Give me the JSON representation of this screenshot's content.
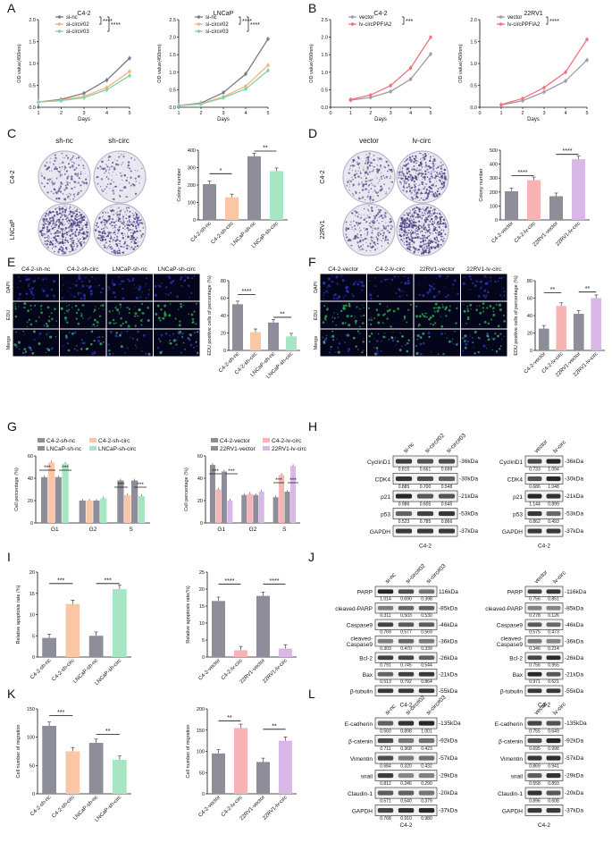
{
  "panel_letters": [
    "A",
    "B",
    "C",
    "D",
    "E",
    "F",
    "G",
    "H",
    "I",
    "J",
    "K",
    "L"
  ],
  "sig": {
    "s1": "*",
    "s2": "**",
    "s3": "***",
    "s4": "****"
  },
  "panelA": {
    "charts": [
      {
        "title": "C4-2",
        "ylabel": "OD value(450nm)",
        "xlabel": "Days",
        "yticks": [
          "0.0",
          "0.5",
          "1.0",
          "1.5",
          "2.0"
        ],
        "ylim": [
          0,
          2.0
        ],
        "x": [
          1,
          2,
          3,
          4,
          5
        ],
        "series": [
          {
            "name": "si-nc",
            "color": "#7b7b86",
            "values": [
              0.12,
              0.18,
              0.32,
              0.62,
              1.12
            ]
          },
          {
            "name": "si-circ#02",
            "color": "#f8b27c",
            "values": [
              0.12,
              0.16,
              0.25,
              0.45,
              0.82
            ]
          },
          {
            "name": "si-circ#03",
            "color": "#7fd3a8",
            "values": [
              0.12,
              0.15,
              0.22,
              0.4,
              0.72
            ]
          }
        ]
      },
      {
        "title": "LNCaP",
        "ylabel": "OD value(450nm)",
        "xlabel": "Days",
        "yticks": [
          "0.0",
          "0.5",
          "1.0",
          "1.5",
          "2.0",
          "2.5"
        ],
        "ylim": [
          0,
          2.5
        ],
        "x": [
          1,
          2,
          3,
          4,
          5
        ],
        "series": [
          {
            "name": "si-nc",
            "color": "#7b7b86",
            "values": [
              0.05,
              0.12,
              0.42,
              0.95,
              1.95
            ]
          },
          {
            "name": "si-circ#02",
            "color": "#f8b27c",
            "values": [
              0.05,
              0.1,
              0.3,
              0.6,
              1.2
            ]
          },
          {
            "name": "si-circ#03",
            "color": "#7fd3a8",
            "values": [
              0.05,
              0.09,
              0.27,
              0.52,
              1.05
            ]
          }
        ]
      }
    ],
    "xticks": [
      "1",
      "2",
      "3",
      "4",
      "5"
    ]
  },
  "panelB": {
    "charts": [
      {
        "title": "C4-2",
        "ylabel": "OD value(450nm)",
        "xlabel": "Days",
        "yticks": [
          "0.0",
          "0.5",
          "1.0",
          "1.5",
          "2.0",
          "2.5"
        ],
        "ylim": [
          0,
          2.5
        ],
        "series": [
          {
            "name": "vector",
            "color": "#9c9ca6",
            "values": [
              0.2,
              0.28,
              0.45,
              0.8,
              1.52
            ]
          },
          {
            "name": "lv-circPPFIA2",
            "color": "#f2707a",
            "values": [
              0.22,
              0.35,
              0.62,
              1.12,
              2.0
            ]
          }
        ]
      },
      {
        "title": "22RV1",
        "ylabel": "OD value(450nm)",
        "xlabel": "Days",
        "yticks": [
          "0.0",
          "0.5",
          "1.0",
          "1.5",
          "2.0"
        ],
        "ylim": [
          0,
          2.0
        ],
        "series": [
          {
            "name": "vector",
            "color": "#9c9ca6",
            "values": [
              0.05,
              0.15,
              0.35,
              0.6,
              1.08
            ]
          },
          {
            "name": "lv-circPPFIA2",
            "color": "#f2707a",
            "values": [
              0.06,
              0.2,
              0.45,
              0.8,
              1.55
            ]
          }
        ]
      }
    ],
    "xticks": [
      "0",
      "1",
      "2",
      "3",
      "4",
      "5"
    ]
  },
  "panelC": {
    "col_labels": [
      "sh-nc",
      "sh-circ"
    ],
    "row_labels": [
      "C4-2",
      "LNCaP"
    ],
    "chart": {
      "ylabel": "Colony number",
      "yticks": [
        "0",
        "100",
        "200",
        "300",
        "400"
      ],
      "ylim": [
        0,
        400
      ],
      "categories": [
        "C4-2-sh-nc",
        "C4-2-sh-circ",
        "LNCaP-sh-nc",
        "LNCaP-sh-circ"
      ],
      "values": [
        205,
        130,
        365,
        280
      ],
      "colors": [
        "#8e8e9a",
        "#f9c6a6",
        "#8e8e9a",
        "#a6e6c2"
      ]
    }
  },
  "panelD": {
    "col_labels": [
      "vector",
      "lv-circ"
    ],
    "row_labels": [
      "C4-2",
      "22RV1"
    ],
    "chart": {
      "ylabel": "Colony number",
      "yticks": [
        "0",
        "100",
        "200",
        "300",
        "400",
        "500"
      ],
      "ylim": [
        0,
        500
      ],
      "categories": [
        "C4-2-vector",
        "C4-2-lv-circ",
        "22RV1-vector",
        "22RV1-lv-circ"
      ],
      "values": [
        205,
        285,
        170,
        435
      ],
      "colors": [
        "#8e8e9a",
        "#f8b4b4",
        "#8e8e9a",
        "#d9b8e8"
      ]
    }
  },
  "panelE": {
    "col_labels": [
      "C4-2-sh-nc",
      "C4-2-sh-circ",
      "LNCaP-sh-nc",
      "LNCaP-sh-circ"
    ],
    "row_labels": [
      "DAPI",
      "EDU",
      "Merge"
    ],
    "chart": {
      "ylabel": "EDU positive cells of percentage (%)",
      "yticks": [
        "0",
        "20",
        "40",
        "60",
        "80"
      ],
      "ylim": [
        0,
        80
      ],
      "categories": [
        "C4-2-sh-nc",
        "C4-2-sh-circ",
        "LNCaP-sh-nc",
        "LNCaP-sh-circ"
      ],
      "values": [
        53,
        21,
        32,
        16
      ],
      "colors": [
        "#8e8e9a",
        "#f9c6a6",
        "#8e8e9a",
        "#a6e6c2"
      ]
    }
  },
  "panelF": {
    "col_labels": [
      "C4-2-vector",
      "C4-2-lv-circ",
      "22RV1-vector",
      "22RV1-lv-circ"
    ],
    "row_labels": [
      "DAPI",
      "EDU",
      "Merge"
    ],
    "chart": {
      "ylabel": "EDU positive cells of percentage (%)",
      "yticks": [
        "0",
        "20",
        "40",
        "60",
        "80"
      ],
      "ylim": [
        0,
        80
      ],
      "categories": [
        "C4-2-vector",
        "C4-2-lv-circ",
        "22RV1-vector",
        "22RV1-lv-circ"
      ],
      "values": [
        25,
        51,
        42,
        60
      ],
      "colors": [
        "#8e8e9a",
        "#f8b4b4",
        "#8e8e9a",
        "#d9b8e8"
      ]
    }
  },
  "panelG": {
    "charts": [
      {
        "ylabel": "Cell percentage (%)",
        "yticks": [
          "0",
          "20",
          "40",
          "60"
        ],
        "ylim": [
          0,
          60
        ],
        "categories": [
          "G1",
          "G2",
          "S"
        ],
        "series": [
          {
            "name": "C4-2-sh-nc",
            "color": "#8e8e9a",
            "values": [
              41,
              20,
              38
            ]
          },
          {
            "name": "C4-2-sh-circ",
            "color": "#f9c6a6",
            "values": [
              54,
              20,
              25
            ]
          },
          {
            "name": "LNCaP-sh-nc",
            "color": "#8e8e9a",
            "values": [
              41,
              20,
              38
            ]
          },
          {
            "name": "LNCaP-sh-circ",
            "color": "#a6e6c2",
            "values": [
              53,
              22,
              24
            ]
          }
        ]
      },
      {
        "ylabel": "Cell percentage (%)",
        "yticks": [
          "0",
          "20",
          "40",
          "60"
        ],
        "ylim": [
          0,
          60
        ],
        "categories": [
          "G1",
          "G2",
          "S"
        ],
        "series": [
          {
            "name": "C4-2-vector",
            "color": "#8e8e9a",
            "values": [
              52,
              25,
              23
            ]
          },
          {
            "name": "C4-2-lv-circ",
            "color": "#f8b4b4",
            "values": [
              30,
              26,
              43
            ]
          },
          {
            "name": "22RV1-vector",
            "color": "#8e8e9a",
            "values": [
              46,
              25,
              28
            ]
          },
          {
            "name": "22RV1-lv-circ",
            "color": "#d9b8e8",
            "values": [
              20,
              28,
              51
            ]
          }
        ]
      }
    ]
  },
  "panelH": {
    "left": {
      "cols": [
        "si-nc",
        "si-circ#02",
        "si-circ#03"
      ],
      "footer": "C4-2",
      "rows": [
        {
          "name": "CyclinD1",
          "kda": "-36kDa",
          "q": [
            "0.815",
            "0.661",
            "0.699"
          ]
        },
        {
          "name": "CDK4",
          "kda": "-30kDa",
          "q": [
            "0.885",
            "0.700",
            "0.548"
          ]
        },
        {
          "name": "p21",
          "kda": "-21kDa",
          "q": [
            "0.986",
            "0.605",
            "0.645"
          ]
        },
        {
          "name": "p53",
          "kda": "-53kDa",
          "q": [
            "0.523",
            "0.785",
            "0.866"
          ]
        },
        {
          "name": "GAPDH",
          "kda": "-37kDa",
          "q": []
        }
      ]
    },
    "right": {
      "cols": [
        "vector",
        "lv-circ"
      ],
      "footer": "C4-2",
      "rows": [
        {
          "name": "CyclinD1",
          "kda": "-36kDa",
          "q": [
            "0.733",
            "1.094"
          ]
        },
        {
          "name": "CDK4",
          "kda": "-30kDa",
          "q": [
            "0.686",
            "1.048"
          ]
        },
        {
          "name": "p21",
          "kda": "-21kDa",
          "q": [
            "1.144",
            "0.899"
          ]
        },
        {
          "name": "p53",
          "kda": "-53kDa",
          "q": [
            "0.862",
            "0.493"
          ]
        },
        {
          "name": "GAPDH",
          "kda": "-37kDa",
          "q": []
        }
      ]
    }
  },
  "panelI": {
    "charts": [
      {
        "ylabel": "Relative apoptosis rate (%)",
        "yticks": [
          "0",
          "5",
          "10",
          "15",
          "20"
        ],
        "ylim": [
          0,
          20
        ],
        "categories": [
          "C4-2-sh-nc",
          "C4-2-sh-circ",
          "LNCaP-sh-nc",
          "LNCaP-sh-circ"
        ],
        "values": [
          4.5,
          12.5,
          5.0,
          16.0
        ],
        "colors": [
          "#8e8e9a",
          "#f9c6a6",
          "#8e8e9a",
          "#a6e6c2"
        ]
      },
      {
        "ylabel": "Relative apoptosis rate(%)",
        "yticks": [
          "0",
          "5",
          "10",
          "15",
          "20",
          "25"
        ],
        "ylim": [
          0,
          25
        ],
        "categories": [
          "C4-2-vector",
          "C4-2-lv-circ",
          "22RV1-vector",
          "22RV1-lv-circ"
        ],
        "values": [
          16.5,
          2.0,
          18.0,
          2.5
        ],
        "colors": [
          "#8e8e9a",
          "#f8b4b4",
          "#8e8e9a",
          "#d9b8e8"
        ]
      }
    ]
  },
  "panelJ": {
    "left": {
      "cols": [
        "si-nc",
        "si-circ#02",
        "si-circ#03"
      ],
      "footer": "C4-2",
      "rows": [
        {
          "name": "PARP",
          "kda": "116kDa",
          "q": [
            "1.014",
            "0.690",
            "0.398"
          ]
        },
        {
          "name": "cleaved-PARP",
          "kda": "-85kDa",
          "q": [
            "0.311",
            "0.503",
            "0.530"
          ]
        },
        {
          "name": "Caspase9",
          "kda": "-46kDa",
          "q": [
            "0.769",
            "0.577",
            "0.569"
          ]
        },
        {
          "name": "cleaved-\nCaspase9",
          "kda": "-36kDa",
          "q": [
            "0.303",
            "0.470",
            "0.339"
          ]
        },
        {
          "name": "Bcl-2",
          "kda": "-26kDa",
          "q": [
            "0.791",
            "0.745",
            "0.544"
          ]
        },
        {
          "name": "Bax",
          "kda": "-21kDa",
          "q": [
            "0.513",
            "0.792",
            "0.864"
          ]
        },
        {
          "name": "β-tubulin",
          "kda": "-55kDa",
          "q": []
        }
      ]
    },
    "right": {
      "cols": [
        "vector",
        "lv-circ"
      ],
      "footer": "C4-2",
      "rows": [
        {
          "name": "PARP",
          "kda": "-116kDa",
          "q": [
            "0.756",
            "0.851"
          ]
        },
        {
          "name": "cleaved-PARP",
          "kda": "-85kDa",
          "q": [
            "0.278",
            "0.126"
          ]
        },
        {
          "name": "Caspase9",
          "kda": "-46kDa",
          "q": [
            "0.575",
            "0.473"
          ]
        },
        {
          "name": "cleaved-\nCaspase9",
          "kda": "-36kDa",
          "q": [
            "0.346",
            "0.214"
          ]
        },
        {
          "name": "Bcl-2",
          "kda": "-26kDa",
          "q": [
            "0.756",
            "0.955"
          ]
        },
        {
          "name": "Bax",
          "kda": "-21kDa",
          "q": [
            "0.971",
            "0.621"
          ]
        },
        {
          "name": "β-tubulin",
          "kda": "-55kDa",
          "q": []
        }
      ]
    }
  },
  "panelK": {
    "charts": [
      {
        "ylabel": "Cell number of migration",
        "yticks": [
          "0",
          "50",
          "100",
          "150"
        ],
        "ylim": [
          0,
          150
        ],
        "categories": [
          "C4-2-sh-nc",
          "C4-2-sh-circ",
          "LNCaP-sh-nc",
          "LNCaP-sh-circ"
        ],
        "values": [
          120,
          75,
          90,
          60
        ],
        "colors": [
          "#8e8e9a",
          "#f9c6a6",
          "#8e8e9a",
          "#a6e6c2"
        ]
      },
      {
        "ylabel": "Cell number of migration",
        "yticks": [
          "0",
          "50",
          "100",
          "150",
          "200"
        ],
        "ylim": [
          0,
          200
        ],
        "categories": [
          "C4-2-vector",
          "C4-2-lv-circ",
          "22RV1-vector",
          "22RV1-lv-circ"
        ],
        "values": [
          95,
          155,
          75,
          125
        ],
        "colors": [
          "#8e8e9a",
          "#f8b4b4",
          "#8e8e9a",
          "#d9b8e8"
        ]
      }
    ]
  },
  "panelL": {
    "left": {
      "cols": [
        "si-nc",
        "si-circ#02",
        "si-circ#03"
      ],
      "footer": "C4-2",
      "rows": [
        {
          "name": "E-cadherin",
          "kda": "-135kDa",
          "q": [
            "0.560",
            "0.898",
            "1.001"
          ]
        },
        {
          "name": "β-catenin",
          "kda": "-92kDa",
          "q": [
            "0.711",
            "0.368",
            "0.423"
          ]
        },
        {
          "name": "Vimentin",
          "kda": "-57kDa",
          "q": [
            "0.684",
            "0.320",
            "0.432"
          ]
        },
        {
          "name": "snail",
          "kda": "-29kDa",
          "q": [
            "0.812",
            "0.246",
            "0.290"
          ]
        },
        {
          "name": "Claudin-1",
          "kda": "-20kDa",
          "q": [
            "0.571",
            "0.540",
            "0.379"
          ]
        },
        {
          "name": "GAPDH",
          "kda": "-37kDa",
          "q": [
            "0.768",
            "0.910",
            "0.980"
          ]
        }
      ]
    },
    "right": {
      "cols": [
        "vector",
        "lv-circ"
      ],
      "footer": "C4-2",
      "rows": [
        {
          "name": "E-cadherin",
          "kda": "-135kDa",
          "q": [
            "0.755",
            "0.649"
          ]
        },
        {
          "name": "β-catenin",
          "kda": "-92kDa",
          "q": [
            "0.695",
            "0.998"
          ]
        },
        {
          "name": "Vimentin",
          "kda": "-57kDa",
          "q": [
            "0.869",
            "0.941"
          ]
        },
        {
          "name": "snail",
          "kda": "-29kDa",
          "q": [
            "0.558",
            "0.893"
          ]
        },
        {
          "name": "Claudin-1",
          "kda": "-20kDa",
          "q": [
            "0.896",
            "0.608"
          ]
        },
        {
          "name": "GAPDH",
          "kda": "-37kDa",
          "q": []
        }
      ]
    }
  }
}
